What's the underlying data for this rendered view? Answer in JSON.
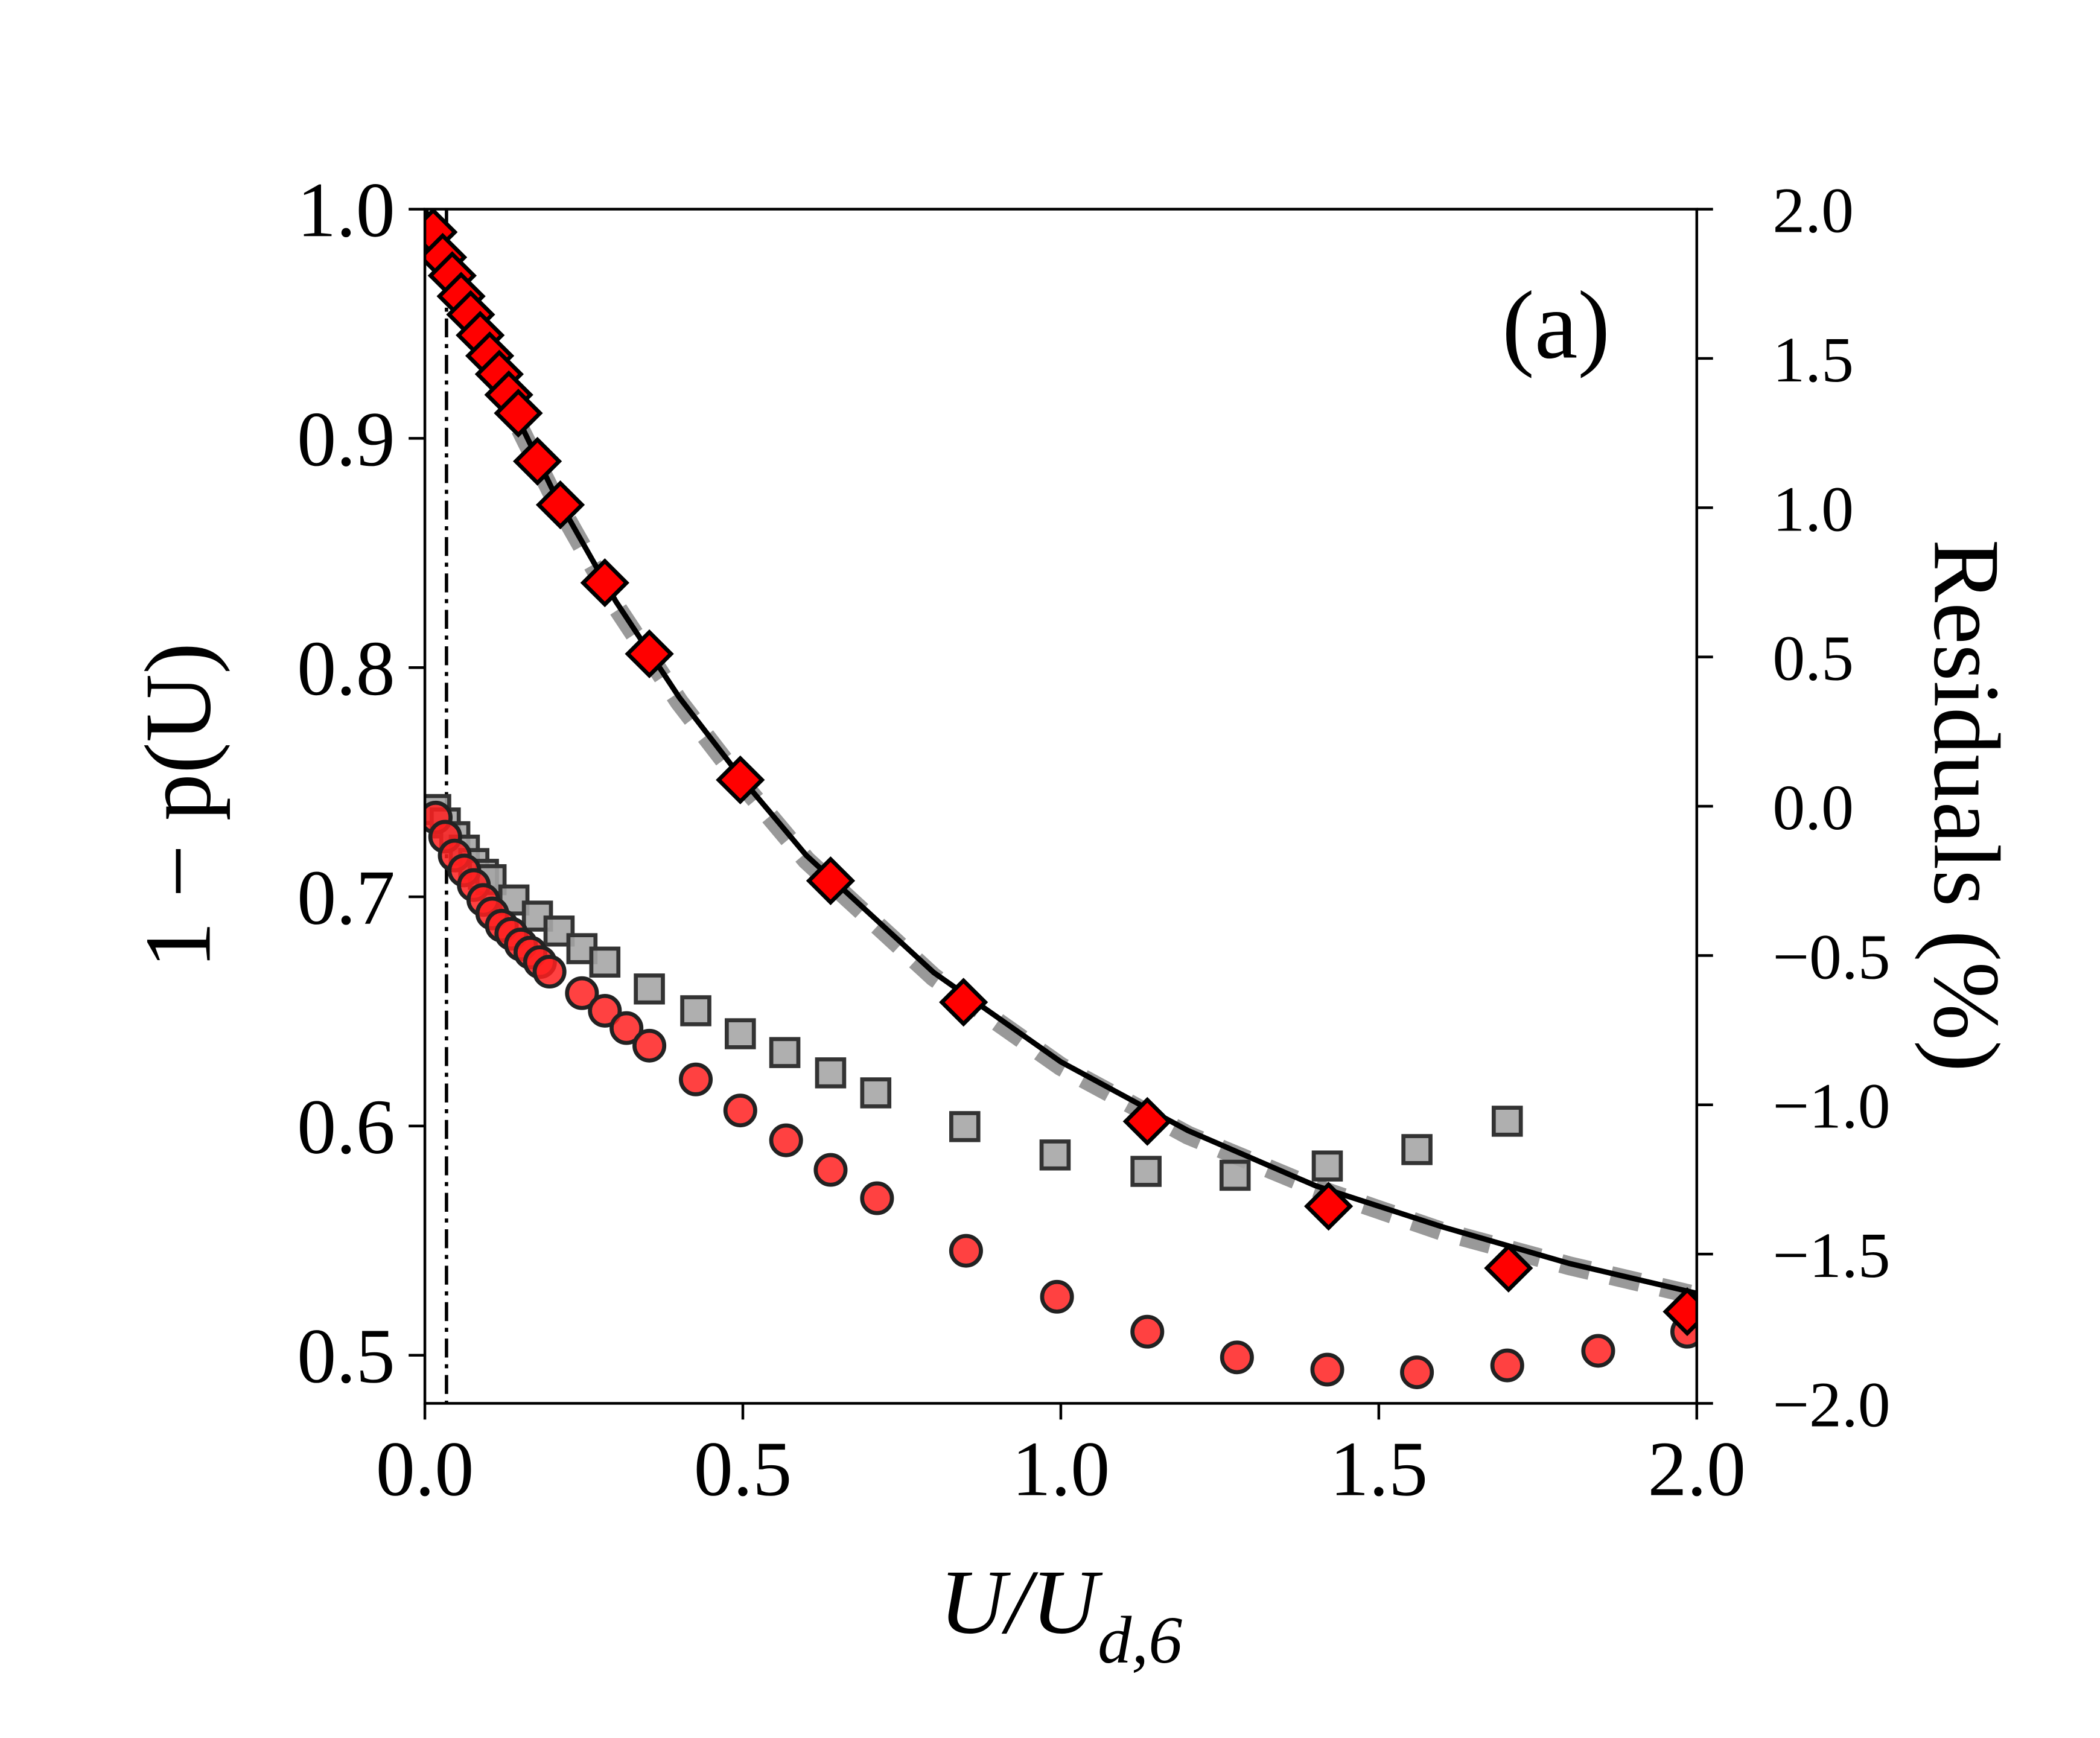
{
  "chart_data": {
    "type": "scatter",
    "annotation": "(a)",
    "xlabel": {
      "main": "U/U",
      "sub": "d,6"
    },
    "ylabel": "1 − p(U)",
    "y2label": "Residuals (%)",
    "xlim": [
      0,
      2.0
    ],
    "ylim": [
      0.479,
      1.0
    ],
    "y2lim": [
      -2.0,
      2.0
    ],
    "xticks": [
      {
        "value": 0,
        "label": "0.0"
      },
      0.5,
      {
        "value": 1,
        "label": "1.0"
      },
      1.5,
      {
        "value": 2,
        "label": "2.0"
      }
    ],
    "yticks": [
      0.5,
      0.6,
      0.7,
      0.8,
      0.9,
      {
        "value": 1,
        "label": "1.0"
      }
    ],
    "y2ticks": [
      {
        "value": 2,
        "label": "2.0"
      },
      1.5,
      {
        "value": 1,
        "label": "1.0"
      },
      0.5,
      {
        "value": 0,
        "label": "0.0"
      },
      {
        "value": -0.5,
        "label": "−0.5"
      },
      {
        "value": -1,
        "label": "−1.0"
      },
      {
        "value": -1.5,
        "label": "−1.5"
      },
      {
        "value": -2,
        "label": "−2.0"
      }
    ],
    "vline": 0.034,
    "series": [
      {
        "kind": "line",
        "color": "#999999",
        "dash": true,
        "x": [
          0.15,
          0.2,
          0.3,
          0.4,
          0.5,
          0.6,
          0.8,
          1.0,
          1.2,
          1.4,
          1.6,
          1.8,
          2.0
        ],
        "values": [
          0.904,
          0.876,
          0.827,
          0.785,
          0.749,
          0.716,
          0.665,
          0.626,
          0.596,
          0.573,
          0.554,
          0.539,
          0.526
        ]
      },
      {
        "kind": "line",
        "color": "#000000",
        "x": [
          0,
          0.1,
          0.2,
          0.3,
          0.4,
          0.5,
          0.6,
          0.8,
          1.0,
          1.2,
          1.4,
          1.6,
          1.8,
          2.0
        ],
        "values": [
          1.0,
          0.935,
          0.878,
          0.829,
          0.787,
          0.751,
          0.718,
          0.667,
          0.628,
          0.598,
          0.574,
          0.556,
          0.54,
          0.527
        ]
      },
      {
        "kind": "square",
        "color": "#a6a6a6",
        "axis": "y2",
        "x": [
          0.017,
          0.032,
          0.047,
          0.062,
          0.077,
          0.092,
          0.104,
          0.14,
          0.177,
          0.211,
          0.247,
          0.283,
          0.353,
          0.426,
          0.496,
          0.566,
          0.638,
          0.709,
          0.849,
          0.991,
          1.134,
          1.274,
          1.419,
          1.56,
          1.702
        ],
        "values": [
          -0.011,
          -0.056,
          -0.102,
          -0.147,
          -0.192,
          -0.228,
          -0.246,
          -0.314,
          -0.368,
          -0.418,
          -0.477,
          -0.522,
          -0.612,
          -0.685,
          -0.762,
          -0.825,
          -0.893,
          -0.96,
          -1.073,
          -1.168,
          -1.223,
          -1.236,
          -1.205,
          -1.15,
          -1.055
        ]
      },
      {
        "kind": "circle",
        "color": "#ff2020",
        "axis": "y2",
        "x": [
          0.017,
          0.032,
          0.047,
          0.062,
          0.077,
          0.092,
          0.106,
          0.121,
          0.136,
          0.151,
          0.166,
          0.181,
          0.196,
          0.247,
          0.283,
          0.317,
          0.353,
          0.426,
          0.496,
          0.568,
          0.638,
          0.711,
          0.851,
          0.994,
          1.136,
          1.277,
          1.419,
          1.56,
          1.702,
          1.845,
          1.985
        ],
        "values": [
          -0.038,
          -0.102,
          -0.165,
          -0.215,
          -0.264,
          -0.314,
          -0.359,
          -0.4,
          -0.427,
          -0.463,
          -0.49,
          -0.522,
          -0.554,
          -0.626,
          -0.685,
          -0.743,
          -0.802,
          -0.915,
          -1.019,
          -1.119,
          -1.218,
          -1.313,
          -1.489,
          -1.643,
          -1.76,
          -1.846,
          -1.887,
          -1.896,
          -1.873,
          -1.824,
          -1.76
        ]
      },
      {
        "kind": "diamond",
        "color": "#ff0000",
        "x": [
          0.013,
          0.028,
          0.043,
          0.057,
          0.072,
          0.087,
          0.102,
          0.117,
          0.132,
          0.147,
          0.177,
          0.213,
          0.283,
          0.353,
          0.496,
          0.638,
          0.847,
          1.136,
          1.421,
          1.704,
          1.985
        ],
        "values": [
          0.99,
          0.979,
          0.971,
          0.962,
          0.954,
          0.945,
          0.936,
          0.928,
          0.919,
          0.911,
          0.89,
          0.871,
          0.837,
          0.806,
          0.751,
          0.707,
          0.654,
          0.602,
          0.565,
          0.538,
          0.519
        ]
      }
    ]
  }
}
